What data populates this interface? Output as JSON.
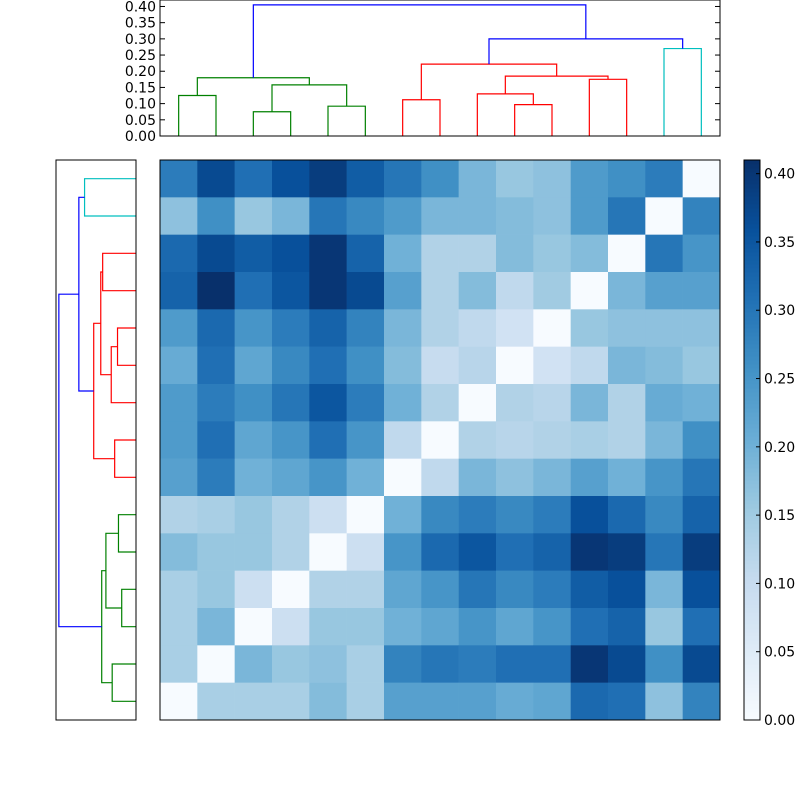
{
  "chart_data": {
    "type": "heatmap",
    "title": "",
    "xlabel": "",
    "ylabel": "",
    "grid": false,
    "colormap": "Blues",
    "colorbar": {
      "range": [
        0,
        0.41
      ],
      "ticks": [
        0.0,
        0.05,
        0.1,
        0.15,
        0.2,
        0.25,
        0.3,
        0.35,
        0.4
      ],
      "tick_labels": [
        "0.00",
        "0.05",
        "0.10",
        "0.15",
        "0.20",
        "0.25",
        "0.30",
        "0.35",
        "0.40"
      ]
    },
    "dendrogram_top": {
      "ylim": [
        0,
        0.42
      ],
      "tick_labels": [
        "0.00",
        "0.05",
        "0.10",
        "0.15",
        "0.20",
        "0.25",
        "0.30",
        "0.35",
        "0.40"
      ],
      "ticks": [
        0.0,
        0.05,
        0.1,
        0.15,
        0.2,
        0.25,
        0.3,
        0.35,
        0.4
      ],
      "leaf_order": [
        0,
        1,
        2,
        3,
        4,
        5,
        6,
        7,
        8,
        9,
        10,
        11,
        12,
        13,
        14
      ],
      "links": [
        {
          "x": [
            0.5,
            1.5
          ],
          "h": 0.125,
          "child_h": [
            0,
            0
          ],
          "color": "#008000"
        },
        {
          "x": [
            2.5,
            3.5
          ],
          "h": 0.075,
          "child_h": [
            0,
            0
          ],
          "color": "#008000"
        },
        {
          "x": [
            4.5,
            5.5
          ],
          "h": 0.092,
          "child_h": [
            0,
            0
          ],
          "color": "#008000"
        },
        {
          "x": [
            3.0,
            5.0
          ],
          "h": 0.158,
          "child_h": [
            0.075,
            0.092
          ],
          "color": "#008000"
        },
        {
          "x": [
            1.0,
            4.0
          ],
          "h": 0.18,
          "child_h": [
            0.125,
            0.158
          ],
          "color": "#008000"
        },
        {
          "x": [
            6.5,
            7.5
          ],
          "h": 0.112,
          "child_h": [
            0,
            0
          ],
          "color": "#ff0000"
        },
        {
          "x": [
            9.5,
            10.5
          ],
          "h": 0.097,
          "child_h": [
            0,
            0
          ],
          "color": "#ff0000"
        },
        {
          "x": [
            8.5,
            10.0
          ],
          "h": 0.13,
          "child_h": [
            0,
            0.097
          ],
          "color": "#ff0000"
        },
        {
          "x": [
            11.5,
            12.5
          ],
          "h": 0.175,
          "child_h": [
            0,
            0
          ],
          "color": "#ff0000"
        },
        {
          "x": [
            9.25,
            12.0
          ],
          "h": 0.185,
          "child_h": [
            0.13,
            0.175
          ],
          "color": "#ff0000"
        },
        {
          "x": [
            7.0,
            10.625
          ],
          "h": 0.222,
          "child_h": [
            0.112,
            0.185
          ],
          "color": "#ff0000"
        },
        {
          "x": [
            13.5,
            14.5
          ],
          "h": 0.27,
          "child_h": [
            0,
            0
          ],
          "color": "#00bfbf"
        },
        {
          "x": [
            8.8125,
            14.0
          ],
          "h": 0.3,
          "child_h": [
            0.222,
            0.27
          ],
          "color": "#0000ff"
        },
        {
          "x": [
            2.5,
            11.40625
          ],
          "h": 0.405,
          "child_h": [
            0.18,
            0.3
          ],
          "color": "#0000ff"
        }
      ]
    },
    "dendrogram_left": {
      "xlim": [
        0.42,
        0
      ],
      "links": [
        {
          "y": [
            0.5,
            1.5
          ],
          "h": 0.27,
          "child_h": [
            0,
            0
          ],
          "color": "#00bfbf"
        },
        {
          "y": [
            2.5,
            3.5
          ],
          "h": 0.175,
          "child_h": [
            0,
            0
          ],
          "color": "#ff0000"
        },
        {
          "y": [
            4.5,
            5.5
          ],
          "h": 0.097,
          "child_h": [
            0,
            0
          ],
          "color": "#ff0000"
        },
        {
          "y": [
            5.0,
            6.5
          ],
          "h": 0.13,
          "child_h": [
            0.097,
            0
          ],
          "color": "#ff0000"
        },
        {
          "y": [
            3.0,
            5.75
          ],
          "h": 0.185,
          "child_h": [
            0.175,
            0.13
          ],
          "color": "#ff0000"
        },
        {
          "y": [
            7.5,
            8.5
          ],
          "h": 0.112,
          "child_h": [
            0,
            0
          ],
          "color": "#ff0000"
        },
        {
          "y": [
            4.375,
            8.0
          ],
          "h": 0.222,
          "child_h": [
            0.185,
            0.112
          ],
          "color": "#ff0000"
        },
        {
          "y": [
            1.0,
            6.1875
          ],
          "h": 0.3,
          "child_h": [
            0.27,
            0.222
          ],
          "color": "#0000ff"
        },
        {
          "y": [
            9.5,
            10.5
          ],
          "h": 0.092,
          "child_h": [
            0,
            0
          ],
          "color": "#008000"
        },
        {
          "y": [
            11.5,
            12.5
          ],
          "h": 0.075,
          "child_h": [
            0,
            0
          ],
          "color": "#008000"
        },
        {
          "y": [
            10.0,
            12.0
          ],
          "h": 0.158,
          "child_h": [
            0.092,
            0.075
          ],
          "color": "#008000"
        },
        {
          "y": [
            13.5,
            14.5
          ],
          "h": 0.125,
          "child_h": [
            0,
            0
          ],
          "color": "#008000"
        },
        {
          "y": [
            11.0,
            14.0
          ],
          "h": 0.18,
          "child_h": [
            0.158,
            0.125
          ],
          "color": "#008000"
        },
        {
          "y": [
            3.59375,
            12.5
          ],
          "h": 0.405,
          "child_h": [
            0.3,
            0.18
          ],
          "color": "#0000ff"
        }
      ]
    },
    "matrix": [
      [
        0.29,
        0.37,
        0.31,
        0.36,
        0.39,
        0.34,
        0.3,
        0.26,
        0.19,
        0.16,
        0.17,
        0.24,
        0.26,
        0.29,
        0.0
      ],
      [
        0.17,
        0.26,
        0.16,
        0.19,
        0.3,
        0.27,
        0.24,
        0.19,
        0.19,
        0.18,
        0.17,
        0.24,
        0.3,
        0.0,
        0.28
      ],
      [
        0.32,
        0.37,
        0.34,
        0.36,
        0.4,
        0.33,
        0.2,
        0.13,
        0.13,
        0.18,
        0.16,
        0.18,
        0.0,
        0.3,
        0.25
      ],
      [
        0.33,
        0.41,
        0.31,
        0.35,
        0.4,
        0.37,
        0.23,
        0.13,
        0.18,
        0.11,
        0.15,
        0.0,
        0.19,
        0.23,
        0.23
      ],
      [
        0.24,
        0.32,
        0.25,
        0.29,
        0.33,
        0.28,
        0.19,
        0.13,
        0.11,
        0.08,
        0.0,
        0.16,
        0.17,
        0.17,
        0.17
      ],
      [
        0.21,
        0.31,
        0.22,
        0.27,
        0.31,
        0.26,
        0.18,
        0.1,
        0.12,
        0.0,
        0.08,
        0.11,
        0.19,
        0.18,
        0.16
      ],
      [
        0.24,
        0.29,
        0.26,
        0.3,
        0.35,
        0.29,
        0.2,
        0.13,
        0.0,
        0.13,
        0.12,
        0.19,
        0.13,
        0.21,
        0.2
      ],
      [
        0.24,
        0.31,
        0.22,
        0.25,
        0.31,
        0.25,
        0.11,
        0.0,
        0.13,
        0.12,
        0.13,
        0.14,
        0.13,
        0.19,
        0.26
      ],
      [
        0.23,
        0.29,
        0.2,
        0.22,
        0.25,
        0.2,
        0.0,
        0.11,
        0.19,
        0.17,
        0.19,
        0.23,
        0.2,
        0.25,
        0.3
      ],
      [
        0.13,
        0.14,
        0.16,
        0.13,
        0.09,
        0.0,
        0.2,
        0.27,
        0.29,
        0.27,
        0.29,
        0.36,
        0.32,
        0.27,
        0.33
      ],
      [
        0.18,
        0.16,
        0.16,
        0.13,
        0.0,
        0.09,
        0.25,
        0.32,
        0.35,
        0.31,
        0.33,
        0.4,
        0.39,
        0.3,
        0.39
      ],
      [
        0.14,
        0.16,
        0.09,
        0.0,
        0.13,
        0.13,
        0.22,
        0.25,
        0.3,
        0.27,
        0.29,
        0.34,
        0.36,
        0.19,
        0.36
      ],
      [
        0.14,
        0.19,
        0.0,
        0.09,
        0.16,
        0.16,
        0.2,
        0.22,
        0.25,
        0.22,
        0.25,
        0.31,
        0.33,
        0.16,
        0.31
      ],
      [
        0.14,
        0.0,
        0.19,
        0.16,
        0.17,
        0.14,
        0.28,
        0.3,
        0.29,
        0.31,
        0.31,
        0.4,
        0.37,
        0.26,
        0.37
      ],
      [
        0.0,
        0.14,
        0.14,
        0.14,
        0.18,
        0.14,
        0.23,
        0.23,
        0.23,
        0.21,
        0.22,
        0.32,
        0.31,
        0.17,
        0.28
      ]
    ]
  }
}
